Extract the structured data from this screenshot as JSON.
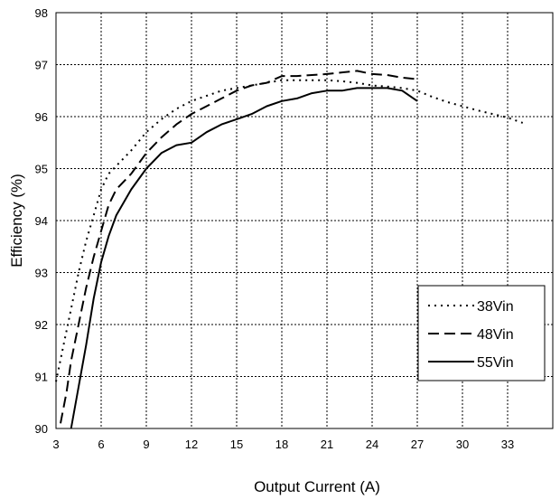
{
  "chart_data": {
    "type": "line",
    "title": "",
    "xlabel": "Output Current (A)",
    "ylabel": "Efficiency (%)",
    "xlim": [
      3,
      36
    ],
    "ylim": [
      90,
      98
    ],
    "xticks": [
      3,
      6,
      9,
      12,
      15,
      18,
      21,
      24,
      27,
      30,
      33
    ],
    "yticks": [
      90,
      91,
      92,
      93,
      94,
      95,
      96,
      97,
      98
    ],
    "grid": true,
    "legend_position": "bottom-right",
    "series": [
      {
        "name": "38Vin",
        "style": "dotted",
        "color": "#000000",
        "x": [
          3,
          3.5,
          4,
          4.5,
          5,
          5.5,
          6,
          6.5,
          7,
          8,
          9,
          10,
          11,
          12,
          13,
          14,
          15,
          16,
          17,
          18,
          19,
          20,
          21,
          22,
          23,
          24,
          25,
          26,
          27,
          28,
          29,
          30,
          31,
          32,
          33,
          34
        ],
        "y": [
          90.9,
          91.6,
          92.3,
          93.0,
          93.6,
          94.1,
          94.6,
          94.9,
          95.05,
          95.35,
          95.7,
          95.95,
          96.15,
          96.3,
          96.4,
          96.5,
          96.55,
          96.6,
          96.65,
          96.7,
          96.7,
          96.7,
          96.7,
          96.68,
          96.65,
          96.6,
          96.58,
          96.55,
          96.5,
          96.38,
          96.28,
          96.2,
          96.12,
          96.05,
          95.98,
          95.88
        ]
      },
      {
        "name": "48Vin",
        "style": "dashed",
        "color": "#000000",
        "x": [
          3.3,
          3.7,
          4,
          4.5,
          5,
          5.5,
          6,
          6.5,
          7,
          8,
          9,
          10,
          11,
          12,
          13,
          14,
          15,
          16,
          17,
          18,
          19,
          20,
          21,
          22,
          23,
          24,
          25,
          26,
          27
        ],
        "y": [
          90.1,
          90.7,
          91.3,
          92.0,
          92.7,
          93.3,
          93.8,
          94.3,
          94.6,
          94.9,
          95.3,
          95.6,
          95.85,
          96.05,
          96.2,
          96.35,
          96.5,
          96.6,
          96.65,
          96.78,
          96.78,
          96.8,
          96.82,
          96.85,
          96.88,
          96.82,
          96.8,
          96.75,
          96.72
        ]
      },
      {
        "name": "55Vin",
        "style": "solid",
        "color": "#000000",
        "x": [
          4,
          4.5,
          5,
          5.5,
          6,
          6.5,
          7,
          8,
          9,
          10,
          11,
          12,
          13,
          14,
          15,
          16,
          17,
          18,
          19,
          20,
          21,
          22,
          23,
          24,
          25,
          26,
          27
        ],
        "y": [
          90.0,
          90.8,
          91.6,
          92.5,
          93.2,
          93.7,
          94.1,
          94.6,
          95.0,
          95.3,
          95.45,
          95.5,
          95.7,
          95.85,
          95.95,
          96.05,
          96.2,
          96.3,
          96.35,
          96.45,
          96.5,
          96.5,
          96.55,
          96.55,
          96.55,
          96.5,
          96.3
        ]
      }
    ]
  }
}
